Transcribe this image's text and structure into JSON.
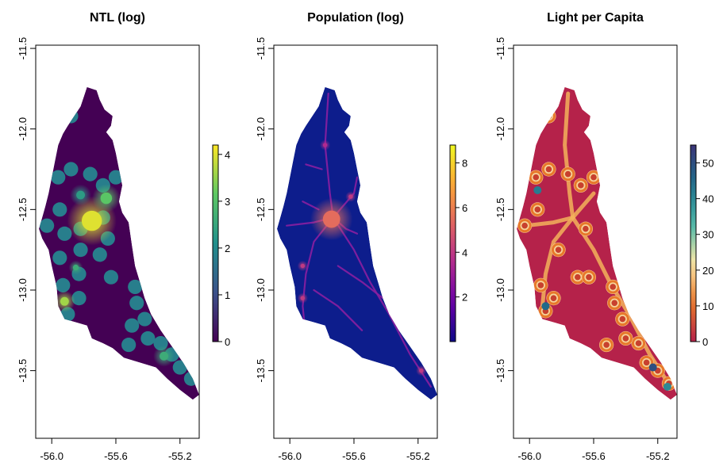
{
  "chart_data": [
    {
      "type": "heatmap",
      "title": "NTL (log)",
      "x_ticks": [
        "-56.0",
        "-55.6",
        "-55.2"
      ],
      "y_ticks": [
        "-11.5",
        "-12.0",
        "-12.5",
        "-13.0",
        "-13.5"
      ],
      "xlim": [
        -56.1,
        -55.08
      ],
      "ylim": [
        -13.92,
        -11.48
      ],
      "colorbar": {
        "palette": "viridis",
        "ticks": [
          "0",
          "1",
          "2",
          "3",
          "4"
        ],
        "range": [
          0,
          4.2
        ],
        "background": "#440154"
      },
      "hotspots": [
        {
          "x": -55.75,
          "y": -12.57,
          "value": 4.0,
          "spread": 0.07
        },
        {
          "x": -55.66,
          "y": -12.43,
          "value": 3.1,
          "spread": 0.04
        },
        {
          "x": -55.92,
          "y": -13.07,
          "value": 3.6,
          "spread": 0.03
        },
        {
          "x": -55.3,
          "y": -13.41,
          "value": 2.6,
          "spread": 0.03
        },
        {
          "x": -55.82,
          "y": -12.41,
          "value": 2.3,
          "spread": 0.03
        },
        {
          "x": -55.85,
          "y": -12.86,
          "value": 2.6,
          "spread": 0.02
        }
      ],
      "blobs": [
        {
          "x": -55.88,
          "y": -11.92,
          "value": 1.8
        },
        {
          "x": -55.96,
          "y": -12.3,
          "value": 1.8
        },
        {
          "x": -55.88,
          "y": -12.25,
          "value": 1.8
        },
        {
          "x": -55.76,
          "y": -12.28,
          "value": 1.8
        },
        {
          "x": -55.6,
          "y": -12.3,
          "value": 1.8
        },
        {
          "x": -55.68,
          "y": -12.35,
          "value": 1.8
        },
        {
          "x": -55.95,
          "y": -12.5,
          "value": 1.8
        },
        {
          "x": -56.03,
          "y": -12.6,
          "value": 1.8
        },
        {
          "x": -55.92,
          "y": -12.65,
          "value": 1.8
        },
        {
          "x": -55.82,
          "y": -12.62,
          "value": 1.8
        },
        {
          "x": -55.68,
          "y": -12.55,
          "value": 1.8
        },
        {
          "x": -55.65,
          "y": -12.68,
          "value": 1.8
        },
        {
          "x": -55.95,
          "y": -12.8,
          "value": 1.8
        },
        {
          "x": -55.82,
          "y": -12.75,
          "value": 1.8
        },
        {
          "x": -55.7,
          "y": -12.78,
          "value": 1.8
        },
        {
          "x": -55.93,
          "y": -12.97,
          "value": 1.8
        },
        {
          "x": -55.83,
          "y": -12.9,
          "value": 1.8
        },
        {
          "x": -55.9,
          "y": -13.15,
          "value": 1.8
        },
        {
          "x": -55.83,
          "y": -13.05,
          "value": 1.8
        },
        {
          "x": -55.63,
          "y": -12.92,
          "value": 1.8
        },
        {
          "x": -55.48,
          "y": -12.98,
          "value": 1.8
        },
        {
          "x": -55.47,
          "y": -13.08,
          "value": 1.8
        },
        {
          "x": -55.42,
          "y": -13.18,
          "value": 1.8
        },
        {
          "x": -55.5,
          "y": -13.22,
          "value": 1.8
        },
        {
          "x": -55.4,
          "y": -13.3,
          "value": 1.8
        },
        {
          "x": -55.52,
          "y": -13.34,
          "value": 1.8
        },
        {
          "x": -55.32,
          "y": -13.33,
          "value": 1.8
        },
        {
          "x": -55.2,
          "y": -13.48,
          "value": 1.8
        },
        {
          "x": -55.13,
          "y": -13.55,
          "value": 1.8
        },
        {
          "x": -55.25,
          "y": -13.4,
          "value": 1.8
        }
      ]
    },
    {
      "type": "heatmap",
      "title": "Population (log)",
      "x_ticks": [
        "-56.0",
        "-55.6",
        "-55.2"
      ],
      "y_ticks": [
        "-11.5",
        "-12.0",
        "-12.5",
        "-13.0",
        "-13.5"
      ],
      "xlim": [
        -56.1,
        -55.08
      ],
      "ylim": [
        -13.92,
        -11.48
      ],
      "colorbar": {
        "palette": "plasma",
        "ticks": [
          "2",
          "4",
          "6",
          "8"
        ],
        "range": [
          0,
          8.8
        ],
        "background": "#0d1d8c"
      },
      "hotspots": [
        {
          "x": -55.73,
          "y": -12.55,
          "value": 8.5,
          "spread": 0.02
        },
        {
          "x": -55.74,
          "y": -12.56,
          "value": 5.5,
          "spread": 0.06
        },
        {
          "x": -55.92,
          "y": -12.85,
          "value": 4.0,
          "spread": 0.015
        },
        {
          "x": -55.62,
          "y": -12.42,
          "value": 4.0,
          "spread": 0.015
        },
        {
          "x": -55.92,
          "y": -13.05,
          "value": 4.0,
          "spread": 0.015
        },
        {
          "x": -55.35,
          "y": -13.15,
          "value": 4.0,
          "spread": 0.015
        },
        {
          "x": -55.18,
          "y": -13.5,
          "value": 4.0,
          "spread": 0.015
        },
        {
          "x": -55.78,
          "y": -12.1,
          "value": 3.5,
          "spread": 0.015
        }
      ],
      "roads": [
        [
          [
            -55.76,
            -11.78
          ],
          [
            -55.78,
            -12.1
          ],
          [
            -55.75,
            -12.4
          ],
          [
            -55.73,
            -12.55
          ]
        ],
        [
          [
            -55.73,
            -12.55
          ],
          [
            -55.85,
            -12.7
          ],
          [
            -55.9,
            -12.9
          ],
          [
            -55.92,
            -13.1
          ],
          [
            -55.9,
            -13.3
          ]
        ],
        [
          [
            -55.73,
            -12.55
          ],
          [
            -55.6,
            -12.4
          ],
          [
            -55.58,
            -12.3
          ]
        ],
        [
          [
            -55.73,
            -12.55
          ],
          [
            -55.6,
            -12.75
          ],
          [
            -55.5,
            -12.95
          ],
          [
            -55.38,
            -13.15
          ],
          [
            -55.25,
            -13.4
          ],
          [
            -55.12,
            -13.6
          ]
        ],
        [
          [
            -56.02,
            -12.6
          ],
          [
            -55.85,
            -12.58
          ],
          [
            -55.73,
            -12.55
          ]
        ],
        [
          [
            -55.73,
            -12.55
          ],
          [
            -55.65,
            -12.62
          ],
          [
            -55.58,
            -12.65
          ]
        ],
        [
          [
            -55.92,
            -12.45
          ],
          [
            -55.82,
            -12.5
          ]
        ],
        [
          [
            -55.7,
            -12.85
          ],
          [
            -55.55,
            -12.95
          ],
          [
            -55.42,
            -13.05
          ]
        ],
        [
          [
            -55.85,
            -13.0
          ],
          [
            -55.7,
            -13.1
          ],
          [
            -55.55,
            -13.25
          ]
        ],
        [
          [
            -55.9,
            -12.22
          ],
          [
            -55.8,
            -12.25
          ]
        ]
      ]
    },
    {
      "type": "heatmap",
      "title": "Light per Capita",
      "x_ticks": [
        "-56.0",
        "-55.6",
        "-55.2"
      ],
      "y_ticks": [
        "-11.5",
        "-12.0",
        "-12.5",
        "-13.0",
        "-13.5"
      ],
      "xlim": [
        -56.1,
        -55.08
      ],
      "ylim": [
        -13.92,
        -11.48
      ],
      "colorbar": {
        "palette": "lightpc",
        "ticks": [
          "0",
          "10",
          "20",
          "30",
          "40",
          "50"
        ],
        "range": [
          0,
          55
        ],
        "background": "#b5224a"
      },
      "rings": [
        {
          "x": -55.88,
          "y": -11.92
        },
        {
          "x": -55.88,
          "y": -12.25
        },
        {
          "x": -55.76,
          "y": -12.28
        },
        {
          "x": -55.96,
          "y": -12.3
        },
        {
          "x": -55.6,
          "y": -12.3
        },
        {
          "x": -55.95,
          "y": -12.5
        },
        {
          "x": -56.03,
          "y": -12.6
        },
        {
          "x": -55.68,
          "y": -12.35
        },
        {
          "x": -55.65,
          "y": -12.62
        },
        {
          "x": -55.93,
          "y": -12.97
        },
        {
          "x": -55.7,
          "y": -12.92
        },
        {
          "x": -55.63,
          "y": -12.92
        },
        {
          "x": -55.85,
          "y": -13.05
        },
        {
          "x": -55.48,
          "y": -12.98
        },
        {
          "x": -55.47,
          "y": -13.08
        },
        {
          "x": -55.42,
          "y": -13.18
        },
        {
          "x": -55.52,
          "y": -13.34
        },
        {
          "x": -55.32,
          "y": -13.33
        },
        {
          "x": -55.27,
          "y": -13.45
        },
        {
          "x": -55.4,
          "y": -13.3
        },
        {
          "x": -55.2,
          "y": -13.5
        },
        {
          "x": -55.13,
          "y": -13.58
        },
        {
          "x": -55.9,
          "y": -13.13
        },
        {
          "x": -55.82,
          "y": -12.75
        }
      ],
      "roads": [
        [
          [
            -55.76,
            -11.78
          ],
          [
            -55.78,
            -12.1
          ],
          [
            -55.75,
            -12.4
          ],
          [
            -55.73,
            -12.55
          ]
        ],
        [
          [
            -55.73,
            -12.55
          ],
          [
            -55.85,
            -12.7
          ],
          [
            -55.9,
            -12.9
          ],
          [
            -55.92,
            -13.1
          ]
        ],
        [
          [
            -55.73,
            -12.55
          ],
          [
            -55.6,
            -12.75
          ],
          [
            -55.5,
            -12.95
          ],
          [
            -55.38,
            -13.15
          ],
          [
            -55.25,
            -13.4
          ],
          [
            -55.12,
            -13.6
          ]
        ],
        [
          [
            -56.02,
            -12.6
          ],
          [
            -55.85,
            -12.58
          ],
          [
            -55.73,
            -12.55
          ]
        ],
        [
          [
            -55.73,
            -12.55
          ],
          [
            -55.6,
            -12.4
          ]
        ]
      ],
      "highlights": [
        {
          "x": -55.9,
          "y": -13.1,
          "value": 45
        },
        {
          "x": -55.23,
          "y": -13.48,
          "value": 50
        },
        {
          "x": -55.14,
          "y": -13.6,
          "value": 40
        },
        {
          "x": -55.95,
          "y": -12.38,
          "value": 42
        }
      ]
    }
  ],
  "region_outline": [
    [
      -55.78,
      -11.74
    ],
    [
      -55.72,
      -11.76
    ],
    [
      -55.7,
      -11.82
    ],
    [
      -55.67,
      -11.88
    ],
    [
      -55.62,
      -11.92
    ],
    [
      -55.63,
      -11.98
    ],
    [
      -55.66,
      -12.02
    ],
    [
      -55.62,
      -12.07
    ],
    [
      -55.6,
      -12.15
    ],
    [
      -55.58,
      -12.25
    ],
    [
      -55.56,
      -12.35
    ],
    [
      -55.58,
      -12.45
    ],
    [
      -55.56,
      -12.52
    ],
    [
      -55.52,
      -12.58
    ],
    [
      -55.5,
      -12.72
    ],
    [
      -55.48,
      -12.85
    ],
    [
      -55.45,
      -12.95
    ],
    [
      -55.42,
      -13.05
    ],
    [
      -55.38,
      -13.15
    ],
    [
      -55.32,
      -13.25
    ],
    [
      -55.25,
      -13.35
    ],
    [
      -55.18,
      -13.45
    ],
    [
      -55.12,
      -13.55
    ],
    [
      -55.08,
      -13.65
    ],
    [
      -55.12,
      -13.68
    ],
    [
      -55.2,
      -13.62
    ],
    [
      -55.28,
      -13.55
    ],
    [
      -55.35,
      -13.48
    ],
    [
      -55.45,
      -13.45
    ],
    [
      -55.55,
      -13.42
    ],
    [
      -55.62,
      -13.36
    ],
    [
      -55.68,
      -13.33
    ],
    [
      -55.75,
      -13.3
    ],
    [
      -55.78,
      -13.22
    ],
    [
      -55.85,
      -13.2
    ],
    [
      -55.92,
      -13.18
    ],
    [
      -55.96,
      -13.1
    ],
    [
      -55.97,
      -12.98
    ],
    [
      -56.0,
      -12.85
    ],
    [
      -56.02,
      -12.75
    ],
    [
      -56.06,
      -12.68
    ],
    [
      -56.08,
      -12.62
    ],
    [
      -56.06,
      -12.55
    ],
    [
      -56.04,
      -12.48
    ],
    [
      -56.02,
      -12.4
    ],
    [
      -56.0,
      -12.3
    ],
    [
      -55.98,
      -12.2
    ],
    [
      -55.96,
      -12.1
    ],
    [
      -55.93,
      -12.03
    ],
    [
      -55.9,
      -11.98
    ],
    [
      -55.86,
      -11.92
    ],
    [
      -55.82,
      -11.86
    ],
    [
      -55.8,
      -11.8
    ]
  ]
}
